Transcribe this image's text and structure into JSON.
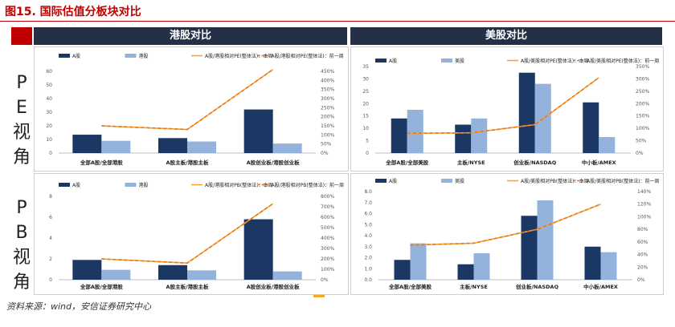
{
  "figure": {
    "title": "图15. 国际估值分板块对比",
    "source": "资料来源：wind，安信证券研究中心"
  },
  "headers": {
    "hk": "港股对比",
    "us": "美股对比"
  },
  "row_labels": {
    "pe": [
      "P",
      "E",
      "视",
      "角"
    ],
    "pb": [
      "P",
      "B",
      "视",
      "角"
    ]
  },
  "colors": {
    "a_share": "#1b3764",
    "foreign": "#93b3dc",
    "ratio_current": "#f5a623",
    "ratio_prev": "#e8732a",
    "header": "#233045",
    "accent": "#c00000"
  },
  "chart_data": [
    {
      "id": "pe-hk",
      "type": "bar",
      "categories": [
        "全部A股/全部港股",
        "A股主板/港股主板",
        "A股创业板/港股创业板"
      ],
      "series": [
        {
          "name": "A股",
          "kind": "bar",
          "axis": "left",
          "values": [
            13.5,
            11,
            32
          ]
        },
        {
          "name": "港股",
          "kind": "bar",
          "axis": "left",
          "values": [
            9,
            8.5,
            7
          ]
        },
        {
          "name": "A股/港股相对PE(整体法)：本周",
          "kind": "line",
          "axis": "right",
          "values": [
            150,
            130,
            460
          ]
        },
        {
          "name": "A股/港股相对PE(整体法)：前一周",
          "kind": "line",
          "axis": "right",
          "values": [
            150,
            130,
            460
          ]
        }
      ],
      "ylim_left": [
        0,
        60
      ],
      "yticks_left": [
        "0",
        "10",
        "20",
        "30",
        "40",
        "50",
        "60"
      ],
      "ylim_right": [
        0,
        450
      ],
      "yticks_right": [
        "0%",
        "50%",
        "100%",
        "150%",
        "200%",
        "250%",
        "300%",
        "350%",
        "400%",
        "450%"
      ]
    },
    {
      "id": "pe-us",
      "type": "bar",
      "categories": [
        "全部A股/全部美股",
        "主板/NYSE",
        "创业板/NASDAQ",
        "中小板/AMEX"
      ],
      "series": [
        {
          "name": "A股",
          "kind": "bar",
          "axis": "left",
          "values": [
            14,
            11.5,
            32.5,
            20.5
          ]
        },
        {
          "name": "美股",
          "kind": "bar",
          "axis": "left",
          "values": [
            17.5,
            14,
            28,
            6.5
          ]
        },
        {
          "name": "A股/美股相对PE(整体法)：本周",
          "kind": "line",
          "axis": "right",
          "values": [
            80,
            82,
            115,
            305
          ]
        },
        {
          "name": "A股/美股相对PE(整体法)：前一周",
          "kind": "line",
          "axis": "right",
          "values": [
            80,
            82,
            115,
            305
          ]
        }
      ],
      "ylim_left": [
        0,
        35
      ],
      "yticks_left": [
        "0",
        "5",
        "10",
        "15",
        "20",
        "25",
        "30",
        "35"
      ],
      "ylim_right": [
        0,
        350
      ],
      "yticks_right": [
        "0%",
        "50%",
        "100%",
        "150%",
        "200%",
        "250%",
        "300%",
        "350%"
      ]
    },
    {
      "id": "pb-hk",
      "type": "bar",
      "categories": [
        "全部A股/全部港股",
        "A股主板/港股主板",
        "A股创业板/港股创业板"
      ],
      "series": [
        {
          "name": "A股",
          "kind": "bar",
          "axis": "left",
          "values": [
            1.9,
            1.4,
            5.8
          ]
        },
        {
          "name": "港股",
          "kind": "bar",
          "axis": "left",
          "values": [
            0.95,
            0.9,
            0.8
          ]
        },
        {
          "name": "A股/港股相对PB(整体法)：本周",
          "kind": "line",
          "axis": "right",
          "values": [
            200,
            160,
            730
          ]
        },
        {
          "name": "A股/港股相对PB(整体法)：前一周",
          "kind": "line",
          "axis": "right",
          "values": [
            200,
            160,
            730
          ]
        }
      ],
      "ylim_left": [
        0,
        8
      ],
      "yticks_left": [
        "0",
        "2",
        "4",
        "6",
        "8"
      ],
      "ylim_right": [
        0,
        800
      ],
      "yticks_right": [
        "0%",
        "100%",
        "200%",
        "300%",
        "400%",
        "500%",
        "600%",
        "700%",
        "800%"
      ]
    },
    {
      "id": "pb-us",
      "type": "bar",
      "categories": [
        "全部A股/全部美股",
        "主板/NYSE",
        "创业板/NASDAQ",
        "中小板/AMEX"
      ],
      "series": [
        {
          "name": "A股",
          "kind": "bar",
          "axis": "left",
          "values": [
            1.8,
            1.4,
            5.8,
            3.0
          ]
        },
        {
          "name": "美股",
          "kind": "bar",
          "axis": "left",
          "values": [
            3.3,
            2.4,
            7.2,
            2.5
          ]
        },
        {
          "name": "A股/美股相对PB(整体法)：本周",
          "kind": "line",
          "axis": "right",
          "values": [
            55,
            58,
            80,
            120
          ]
        },
        {
          "name": "A股/美股相对PB(整体法)：前一周",
          "kind": "line",
          "axis": "right",
          "values": [
            55,
            58,
            80,
            120
          ]
        }
      ],
      "ylim_left": [
        0,
        8
      ],
      "yticks_left": [
        "0.0",
        "1.0",
        "2.0",
        "3.0",
        "4.0",
        "5.0",
        "6.0",
        "7.0",
        "8.0"
      ],
      "ylim_right": [
        0,
        140
      ],
      "yticks_right": [
        "0%",
        "20%",
        "40%",
        "60%",
        "80%",
        "100%",
        "120%",
        "140%"
      ]
    }
  ]
}
